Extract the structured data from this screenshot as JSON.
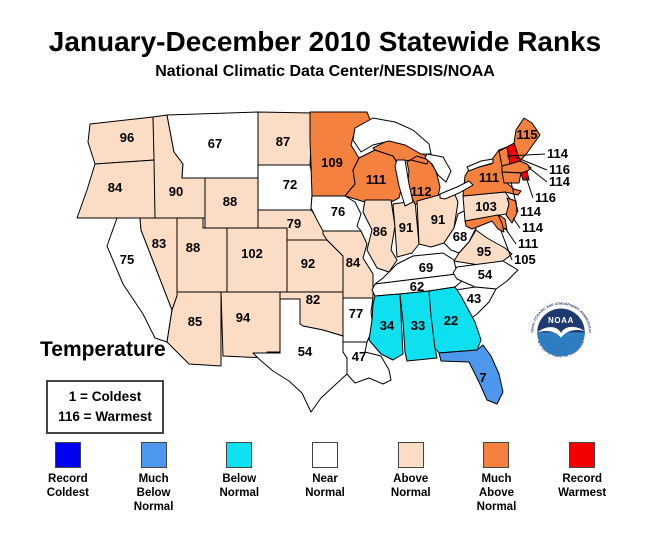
{
  "title": "January-December 2010 Statewide Ranks",
  "subtitle": "National Climatic Data Center/NESDIS/NOAA",
  "temperature_key": {
    "heading": "Temperature",
    "line1": "1 = Coldest",
    "line2": "116 = Warmest"
  },
  "category_colors": {
    "record_coldest": "#0000F0",
    "much_below_normal": "#4D97EE",
    "below_normal": "#0FE0F0",
    "near_normal": "#FFFFFF",
    "above_normal": "#FBDCC4",
    "much_above_normal": "#F5813F",
    "record_warmest": "#F40000"
  },
  "legend": [
    {
      "category": "record_coldest",
      "lines": [
        "Record",
        "Coldest"
      ]
    },
    {
      "category": "much_below_normal",
      "lines": [
        "Much",
        "Below",
        "Normal"
      ]
    },
    {
      "category": "below_normal",
      "lines": [
        "Below",
        "Normal"
      ]
    },
    {
      "category": "near_normal",
      "lines": [
        "Near",
        "Normal"
      ]
    },
    {
      "category": "above_normal",
      "lines": [
        "Above",
        "Normal"
      ]
    },
    {
      "category": "much_above_normal",
      "lines": [
        "Much",
        "Above",
        "Normal"
      ]
    },
    {
      "category": "record_warmest",
      "lines": [
        "Record",
        "Warmest"
      ]
    }
  ],
  "map": {
    "states": [
      {
        "id": "WA",
        "rank": 96,
        "category": "above_normal"
      },
      {
        "id": "OR",
        "rank": 84,
        "category": "above_normal"
      },
      {
        "id": "CA",
        "rank": 75,
        "category": "near_normal"
      },
      {
        "id": "NV",
        "rank": 83,
        "category": "above_normal"
      },
      {
        "id": "ID",
        "rank": 90,
        "category": "above_normal"
      },
      {
        "id": "MT",
        "rank": 67,
        "category": "near_normal"
      },
      {
        "id": "WY",
        "rank": 88,
        "category": "above_normal"
      },
      {
        "id": "UT",
        "rank": 88,
        "category": "above_normal"
      },
      {
        "id": "AZ",
        "rank": 85,
        "category": "above_normal"
      },
      {
        "id": "NM",
        "rank": 94,
        "category": "above_normal"
      },
      {
        "id": "CO",
        "rank": 102,
        "category": "above_normal"
      },
      {
        "id": "ND",
        "rank": 87,
        "category": "above_normal"
      },
      {
        "id": "SD",
        "rank": 72,
        "category": "near_normal"
      },
      {
        "id": "NE",
        "rank": 79,
        "category": "above_normal"
      },
      {
        "id": "KS",
        "rank": 92,
        "category": "above_normal"
      },
      {
        "id": "OK",
        "rank": 82,
        "category": "above_normal"
      },
      {
        "id": "TX",
        "rank": 54,
        "category": "near_normal"
      },
      {
        "id": "MN",
        "rank": 109,
        "category": "much_above_normal"
      },
      {
        "id": "IA",
        "rank": 76,
        "category": "near_normal"
      },
      {
        "id": "MO",
        "rank": 84,
        "category": "above_normal"
      },
      {
        "id": "AR",
        "rank": 77,
        "category": "near_normal"
      },
      {
        "id": "LA",
        "rank": 47,
        "category": "near_normal"
      },
      {
        "id": "WI",
        "rank": 111,
        "category": "much_above_normal"
      },
      {
        "id": "IL",
        "rank": 86,
        "category": "above_normal"
      },
      {
        "id": "IN",
        "rank": 91,
        "category": "above_normal"
      },
      {
        "id": "MI",
        "rank": 112,
        "category": "much_above_normal"
      },
      {
        "id": "OH",
        "rank": 91,
        "category": "above_normal"
      },
      {
        "id": "KY",
        "rank": 69,
        "category": "near_normal"
      },
      {
        "id": "TN",
        "rank": 62,
        "category": "near_normal"
      },
      {
        "id": "WV",
        "rank": 68,
        "category": "near_normal"
      },
      {
        "id": "VA",
        "rank": 95,
        "category": "above_normal"
      },
      {
        "id": "NC",
        "rank": 54,
        "category": "near_normal"
      },
      {
        "id": "SC",
        "rank": 43,
        "category": "near_normal"
      },
      {
        "id": "MS",
        "rank": 34,
        "category": "below_normal"
      },
      {
        "id": "AL",
        "rank": 33,
        "category": "below_normal"
      },
      {
        "id": "GA",
        "rank": 22,
        "category": "below_normal"
      },
      {
        "id": "FL",
        "rank": 7,
        "category": "much_below_normal"
      },
      {
        "id": "PA",
        "rank": 103,
        "category": "above_normal"
      },
      {
        "id": "NY",
        "rank": 111,
        "category": "much_above_normal"
      },
      {
        "id": "ME",
        "rank": 115,
        "category": "much_above_normal"
      },
      {
        "id": "VT",
        "rank": 114,
        "category": "much_above_normal"
      },
      {
        "id": "NH",
        "rank": 116,
        "category": "record_warmest"
      },
      {
        "id": "MA",
        "rank": 114,
        "category": "much_above_normal"
      },
      {
        "id": "RI",
        "rank": 116,
        "category": "record_warmest"
      },
      {
        "id": "CT",
        "rank": 114,
        "category": "much_above_normal"
      },
      {
        "id": "NJ",
        "rank": 114,
        "category": "much_above_normal"
      },
      {
        "id": "DE",
        "rank": 111,
        "category": "much_above_normal"
      },
      {
        "id": "MD",
        "rank": 105,
        "category": "much_above_normal"
      }
    ]
  },
  "noaa_logo": {
    "name": "NOAA",
    "ring_top": "NATIONAL OCEANIC AND ATMOSPHERIC ADMINISTRATION",
    "ring_bottom": "U.S. DEPARTMENT OF COMMERCE"
  }
}
